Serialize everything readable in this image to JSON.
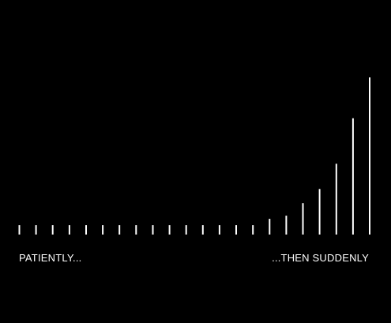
{
  "captions": {
    "left": "PATIENTLY...",
    "right": "...THEN SUDDENLY"
  },
  "graphic": {
    "type": "bar",
    "description_values": [
      6,
      6,
      6,
      6,
      6,
      6,
      6,
      6,
      6,
      6,
      6,
      6,
      6,
      6,
      6,
      10,
      12,
      20,
      29,
      45,
      74,
      100
    ],
    "colors": {
      "background": "#000000",
      "bars": "#ffffff"
    }
  }
}
